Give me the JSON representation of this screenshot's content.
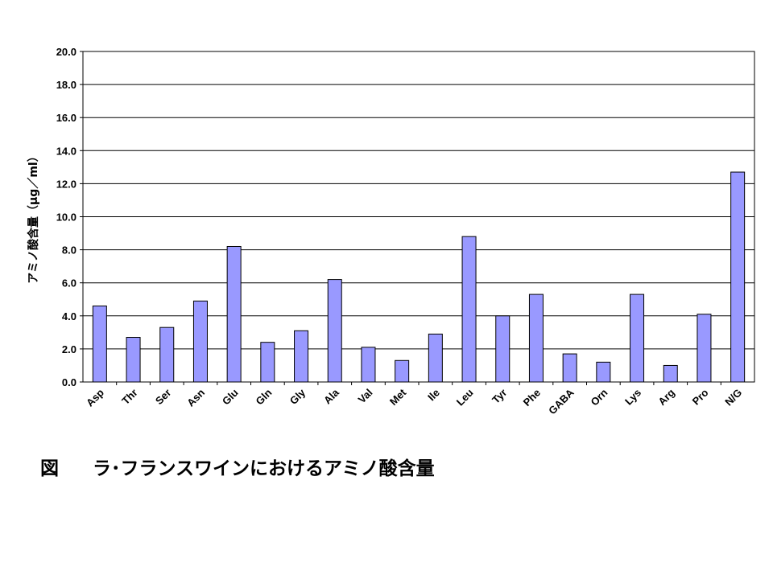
{
  "chart_data": {
    "type": "bar",
    "title": "",
    "xlabel": "",
    "ylabel": "アミノ酸含量（μg／ml）",
    "ylim": [
      0,
      20
    ],
    "yticks": [
      "0.0",
      "2.0",
      "4.0",
      "6.0",
      "8.0",
      "10.0",
      "12.0",
      "14.0",
      "16.0",
      "18.0",
      "20.0"
    ],
    "grid": true,
    "bar_color": "#9999ff",
    "categories": [
      "Asp",
      "Thr",
      "Ser",
      "Asn",
      "Glu",
      "Gln",
      "Gly",
      "Ala",
      "Val",
      "Met",
      "Ile",
      "Leu",
      "Tyr",
      "Phe",
      "GABA",
      "Orn",
      "Lys",
      "Arg",
      "Pro",
      "N/G"
    ],
    "values": [
      4.6,
      2.7,
      3.3,
      4.9,
      8.2,
      2.4,
      3.1,
      6.2,
      2.1,
      1.3,
      2.9,
      8.8,
      4.0,
      5.3,
      1.7,
      1.2,
      5.3,
      1.0,
      4.1,
      12.7
    ]
  },
  "caption": {
    "figure_label": "図",
    "text": "ラ･フランスワインにおけるアミノ酸含量"
  }
}
